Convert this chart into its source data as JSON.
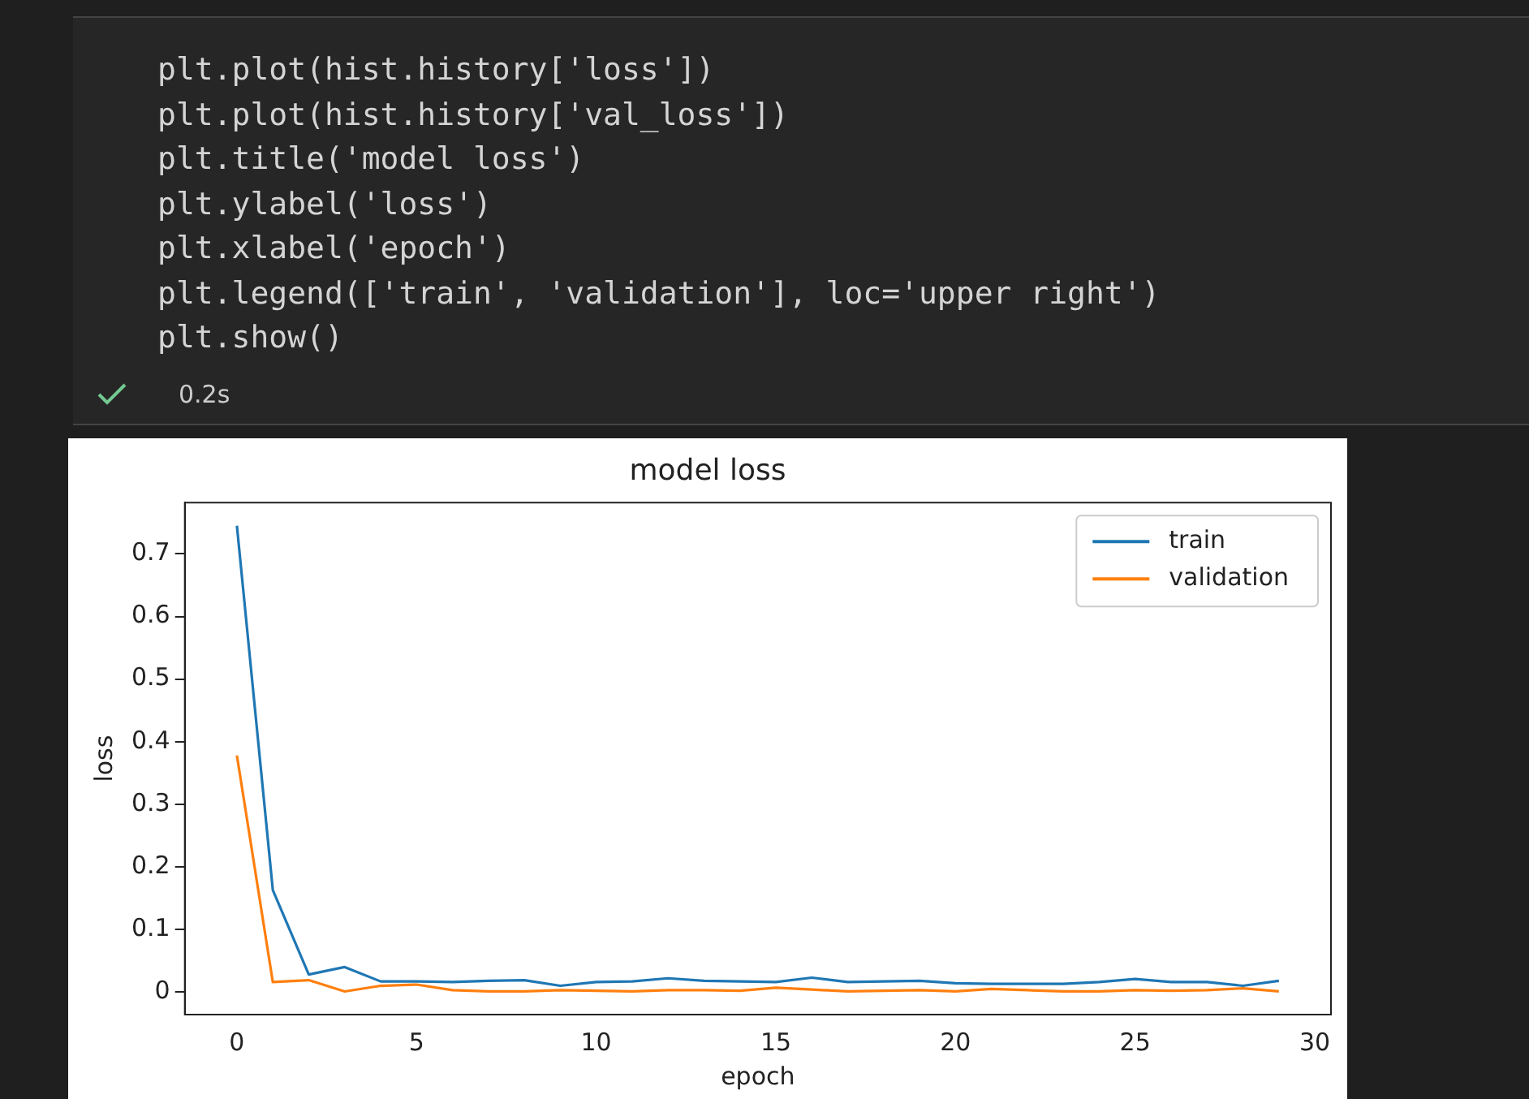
{
  "chart_data": {
    "type": "line",
    "title": "model loss",
    "xlabel": "epoch",
    "ylabel": "loss",
    "x": [
      0,
      1,
      2,
      3,
      4,
      5,
      6,
      7,
      8,
      9,
      10,
      11,
      12,
      13,
      14,
      15,
      16,
      17,
      18,
      19,
      20,
      21,
      22,
      23,
      24,
      25,
      26,
      27,
      28,
      29
    ],
    "series": [
      {
        "name": "train",
        "color": "#1f77b4",
        "values": [
          0.745,
          0.163,
          0.028,
          0.04,
          0.017,
          0.017,
          0.016,
          0.018,
          0.019,
          0.01,
          0.016,
          0.017,
          0.022,
          0.018,
          0.017,
          0.016,
          0.023,
          0.016,
          0.017,
          0.018,
          0.014,
          0.013,
          0.013,
          0.013,
          0.016,
          0.021,
          0.016,
          0.016,
          0.01,
          0.018
        ]
      },
      {
        "name": "validation",
        "color": "#ff7f0e",
        "values": [
          0.378,
          0.016,
          0.019,
          0.001,
          0.01,
          0.012,
          0.003,
          0.001,
          0.001,
          0.003,
          0.002,
          0.001,
          0.003,
          0.003,
          0.002,
          0.007,
          0.004,
          0.001,
          0.002,
          0.003,
          0.001,
          0.005,
          0.003,
          0.001,
          0.001,
          0.003,
          0.002,
          0.003,
          0.006,
          0.001
        ]
      }
    ],
    "xlim": [
      -1.45,
      30.45
    ],
    "xticks": [
      0,
      5,
      10,
      15,
      20,
      25,
      30
    ],
    "ylim": [
      -0.036,
      0.782
    ],
    "yticks": [
      0,
      0.1,
      0.2,
      0.3,
      0.4,
      0.5,
      0.6,
      0.7
    ],
    "legend": "top right",
    "grid": false,
    "marker": "none",
    "line_style": "solid",
    "annotations": [
      "plt.plot(hist.history['loss'])",
      "plt.plot(hist.history['val_loss'])",
      "plt.title('model loss')",
      "plt.ylabel('loss')",
      "plt.xlabel('epoch')",
      "plt.legend(['train', 'validation'], loc='upper right')",
      "plt.show()",
      "0.2s"
    ]
  }
}
